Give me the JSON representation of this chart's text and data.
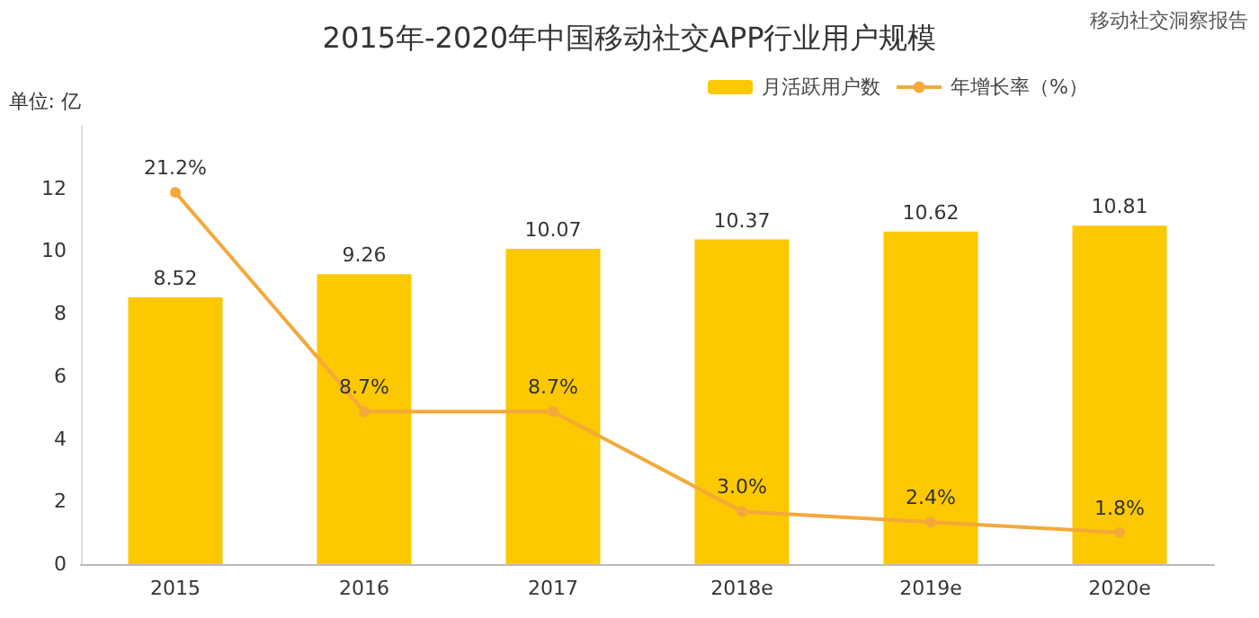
{
  "chart_data": {
    "type": "bar",
    "title": "2015年-2020年中国移动社交APP行业用户规模",
    "ylabel": "单位: 亿",
    "categories": [
      "2015",
      "2016",
      "2017",
      "2018e",
      "2019e",
      "2020e"
    ],
    "series": [
      {
        "name": "月活跃用户数",
        "color": "#fcc800",
        "values": [
          8.52,
          9.26,
          10.07,
          10.37,
          10.62,
          10.81
        ]
      },
      {
        "name": "年增长率（%）",
        "type": "line",
        "axis": "y2",
        "color": "#f4a93a",
        "marker": "circle",
        "values": [
          21.2,
          8.7,
          8.7,
          3.0,
          2.4,
          1.8
        ],
        "value_labels": [
          "21.2%",
          "8.7%",
          "8.7%",
          "3.0%",
          "2.4%",
          "1.8%"
        ]
      }
    ],
    "data_labels": true,
    "ylim": [
      0,
      14
    ],
    "yticks": [
      0,
      2,
      4,
      6,
      8,
      10,
      12
    ],
    "grid": false,
    "legend": "top right",
    "annotations": [
      "移动社交洞察报告"
    ]
  }
}
